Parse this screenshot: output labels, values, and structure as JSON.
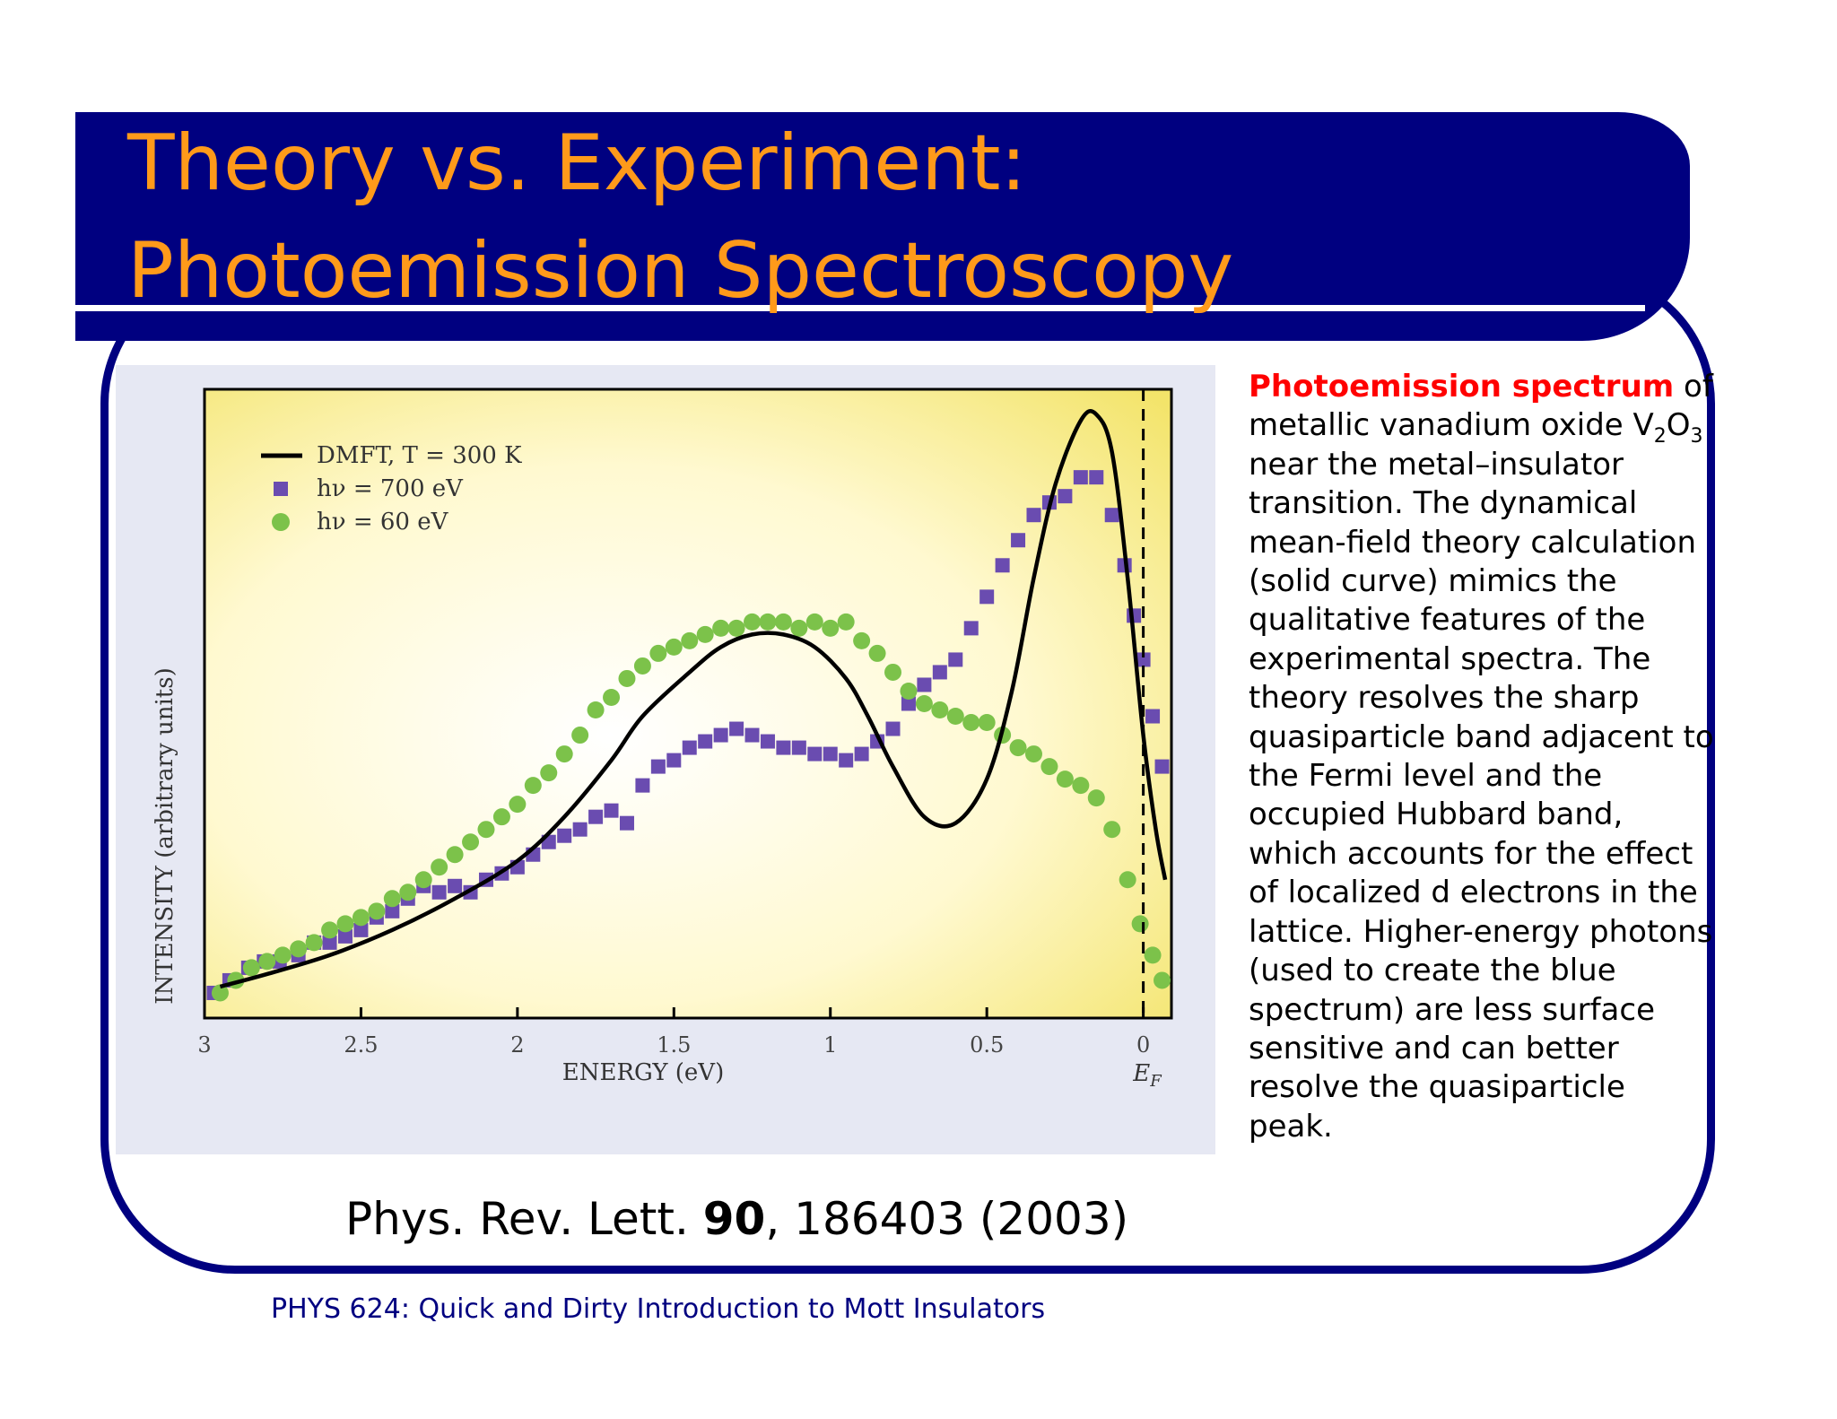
{
  "slide": {
    "title_line1": "Theory vs. Experiment:",
    "title_line2": "Photoemission Spectroscopy",
    "citation": {
      "prefix": "Phys. Rev. Lett. ",
      "volume": "90",
      "suffix": ", 186403 (2003)"
    },
    "footer": "PHYS 624: Quick and Dirty Introduction to Mott Insulators",
    "caption": {
      "highlight": "Photoemission spectrum",
      "part1": " of metallic vanadium oxide V",
      "sub1": "2",
      "mid": "O",
      "sub2": "3",
      "part2": " near the metal–insulator transition. The dynamical mean-field theory calculation (solid curve) mimics the qualitative features of the experimental spectra. The theory resolves the sharp quasiparticle band adjacent to the Fermi level and the occupied Hubbard band, which accounts for the effect of localized d electrons in the lattice. Higher-energy photons (used to create the blue spectrum) are less surface sensitive and can better resolve the quasiparticle peak."
    },
    "colors": {
      "frame": "#000080",
      "title": "#ff9a1a",
      "highlight": "#ff0000",
      "footer": "#000080"
    }
  },
  "chart_data": {
    "type": "line",
    "x_axis_reversed": true,
    "xlim": [
      3,
      -0.09
    ],
    "ylim": [
      0,
      1.0
    ],
    "ylabel": "INTENSITY (arbitrary units)",
    "xlabel": "ENERGY (eV)",
    "x_ticks": [
      {
        "value": 3,
        "label": "3"
      },
      {
        "value": 2.5,
        "label": "2.5"
      },
      {
        "value": 2,
        "label": "2"
      },
      {
        "value": 1.5,
        "label": "1.5"
      },
      {
        "value": 1,
        "label": "1"
      },
      {
        "value": 0.5,
        "label": "0.5"
      },
      {
        "value": 0,
        "label": "0"
      }
    ],
    "ef_label_main": "E",
    "ef_label_sub": "F",
    "fermi_level": 0,
    "legend_position": "top-left",
    "series": [
      {
        "name": "DMFT, T = 300 K",
        "kind": "line",
        "color": "#000000",
        "x": [
          2.95,
          2.8,
          2.6,
          2.4,
          2.2,
          2.0,
          1.85,
          1.7,
          1.6,
          1.45,
          1.35,
          1.25,
          1.15,
          1.05,
          0.95,
          0.88,
          0.8,
          0.7,
          0.6,
          0.5,
          0.42,
          0.35,
          0.28,
          0.2,
          0.15,
          0.1,
          0.05,
          0.0,
          -0.04,
          -0.07
        ],
        "y": [
          0.05,
          0.07,
          0.1,
          0.14,
          0.19,
          0.25,
          0.32,
          0.41,
          0.48,
          0.55,
          0.59,
          0.61,
          0.61,
          0.59,
          0.54,
          0.48,
          0.4,
          0.32,
          0.31,
          0.38,
          0.52,
          0.7,
          0.85,
          0.95,
          0.96,
          0.9,
          0.7,
          0.45,
          0.3,
          0.22
        ]
      },
      {
        "name": "hν = 700 eV",
        "kind": "square",
        "color": "#6a4cb0",
        "x": [
          2.97,
          2.92,
          2.86,
          2.81,
          2.76,
          2.7,
          2.65,
          2.6,
          2.55,
          2.5,
          2.45,
          2.4,
          2.35,
          2.3,
          2.25,
          2.2,
          2.15,
          2.1,
          2.05,
          2.0,
          1.95,
          1.9,
          1.85,
          1.8,
          1.75,
          1.7,
          1.65,
          1.6,
          1.55,
          1.5,
          1.45,
          1.4,
          1.35,
          1.3,
          1.25,
          1.2,
          1.15,
          1.1,
          1.05,
          1.0,
          0.95,
          0.9,
          0.85,
          0.8,
          0.75,
          0.7,
          0.65,
          0.6,
          0.55,
          0.5,
          0.45,
          0.4,
          0.35,
          0.3,
          0.25,
          0.2,
          0.15,
          0.1,
          0.06,
          0.03,
          0.0,
          -0.03,
          -0.06
        ],
        "y": [
          0.04,
          0.06,
          0.08,
          0.09,
          0.09,
          0.1,
          0.12,
          0.12,
          0.13,
          0.14,
          0.16,
          0.17,
          0.19,
          0.21,
          0.2,
          0.21,
          0.2,
          0.22,
          0.23,
          0.24,
          0.26,
          0.28,
          0.29,
          0.3,
          0.32,
          0.33,
          0.31,
          0.37,
          0.4,
          0.41,
          0.43,
          0.44,
          0.45,
          0.46,
          0.45,
          0.44,
          0.43,
          0.43,
          0.42,
          0.42,
          0.41,
          0.42,
          0.44,
          0.46,
          0.5,
          0.53,
          0.55,
          0.57,
          0.62,
          0.67,
          0.72,
          0.76,
          0.8,
          0.82,
          0.83,
          0.86,
          0.86,
          0.8,
          0.72,
          0.64,
          0.57,
          0.48,
          0.4
        ]
      },
      {
        "name": "hν = 60 eV",
        "kind": "circle",
        "color": "#7cc24a",
        "x": [
          2.95,
          2.9,
          2.85,
          2.8,
          2.75,
          2.7,
          2.65,
          2.6,
          2.55,
          2.5,
          2.45,
          2.4,
          2.35,
          2.3,
          2.25,
          2.2,
          2.15,
          2.1,
          2.05,
          2.0,
          1.95,
          1.9,
          1.85,
          1.8,
          1.75,
          1.7,
          1.65,
          1.6,
          1.55,
          1.5,
          1.45,
          1.4,
          1.35,
          1.3,
          1.25,
          1.2,
          1.15,
          1.1,
          1.05,
          1.0,
          0.95,
          0.9,
          0.85,
          0.8,
          0.75,
          0.7,
          0.65,
          0.6,
          0.55,
          0.5,
          0.45,
          0.4,
          0.35,
          0.3,
          0.25,
          0.2,
          0.15,
          0.1,
          0.05,
          0.01,
          -0.03,
          -0.06
        ],
        "y": [
          0.04,
          0.06,
          0.08,
          0.09,
          0.1,
          0.11,
          0.12,
          0.14,
          0.15,
          0.16,
          0.17,
          0.19,
          0.2,
          0.22,
          0.24,
          0.26,
          0.28,
          0.3,
          0.32,
          0.34,
          0.37,
          0.39,
          0.42,
          0.45,
          0.49,
          0.51,
          0.54,
          0.56,
          0.58,
          0.59,
          0.6,
          0.61,
          0.62,
          0.62,
          0.63,
          0.63,
          0.63,
          0.62,
          0.63,
          0.62,
          0.63,
          0.6,
          0.58,
          0.55,
          0.52,
          0.5,
          0.49,
          0.48,
          0.47,
          0.47,
          0.45,
          0.43,
          0.42,
          0.4,
          0.38,
          0.37,
          0.35,
          0.3,
          0.22,
          0.15,
          0.1,
          0.06
        ]
      }
    ]
  }
}
